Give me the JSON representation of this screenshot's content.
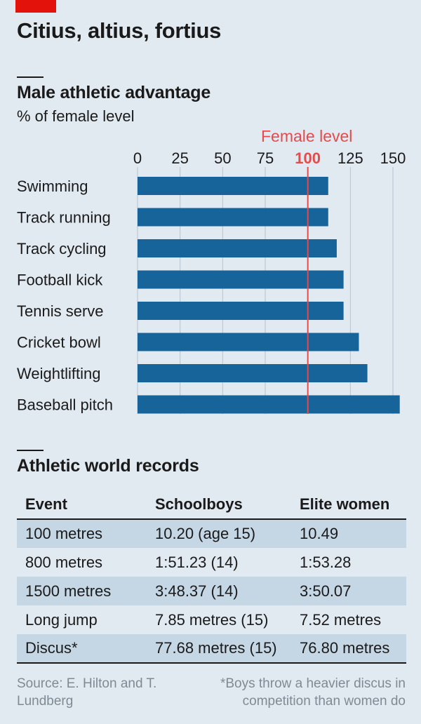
{
  "title": "Citius, altius, fortius",
  "chart_data": {
    "type": "bar",
    "orientation": "horizontal",
    "title": "Male athletic advantage",
    "subtitle": "% of female level",
    "categories": [
      "Swimming",
      "Track running",
      "Track cycling",
      "Football kick",
      "Tennis serve",
      "Cricket bowl",
      "Weightlifting",
      "Baseball pitch"
    ],
    "values": [
      112,
      112,
      117,
      121,
      121,
      130,
      135,
      154
    ],
    "xlim": [
      0,
      150
    ],
    "ticks": [
      0,
      25,
      50,
      75,
      100,
      125,
      150
    ],
    "reference_line": {
      "value": 100,
      "label": "Female level",
      "tick_label": "100"
    },
    "bar_color": "#17649a",
    "reference_color": "#e64a4a"
  },
  "records": {
    "title": "Athletic world records",
    "headers": [
      "Event",
      "Schoolboys",
      "Elite women"
    ],
    "rows": [
      [
        "100 metres",
        "10.20 (age 15)",
        "10.49"
      ],
      [
        "800 metres",
        "1:51.23 (14)",
        "1:53.28"
      ],
      [
        "1500 metres",
        "3:48.37 (14)",
        "3:50.07"
      ],
      [
        "Long jump",
        "7.85 metres (15)",
        "7.52 metres"
      ],
      [
        "Discus*",
        "77.68 metres (15)",
        "76.80 metres"
      ]
    ]
  },
  "source": "Source: E. Hilton and T. Lundberg",
  "footnote": "*Boys throw a heavier discus in competition than women do"
}
